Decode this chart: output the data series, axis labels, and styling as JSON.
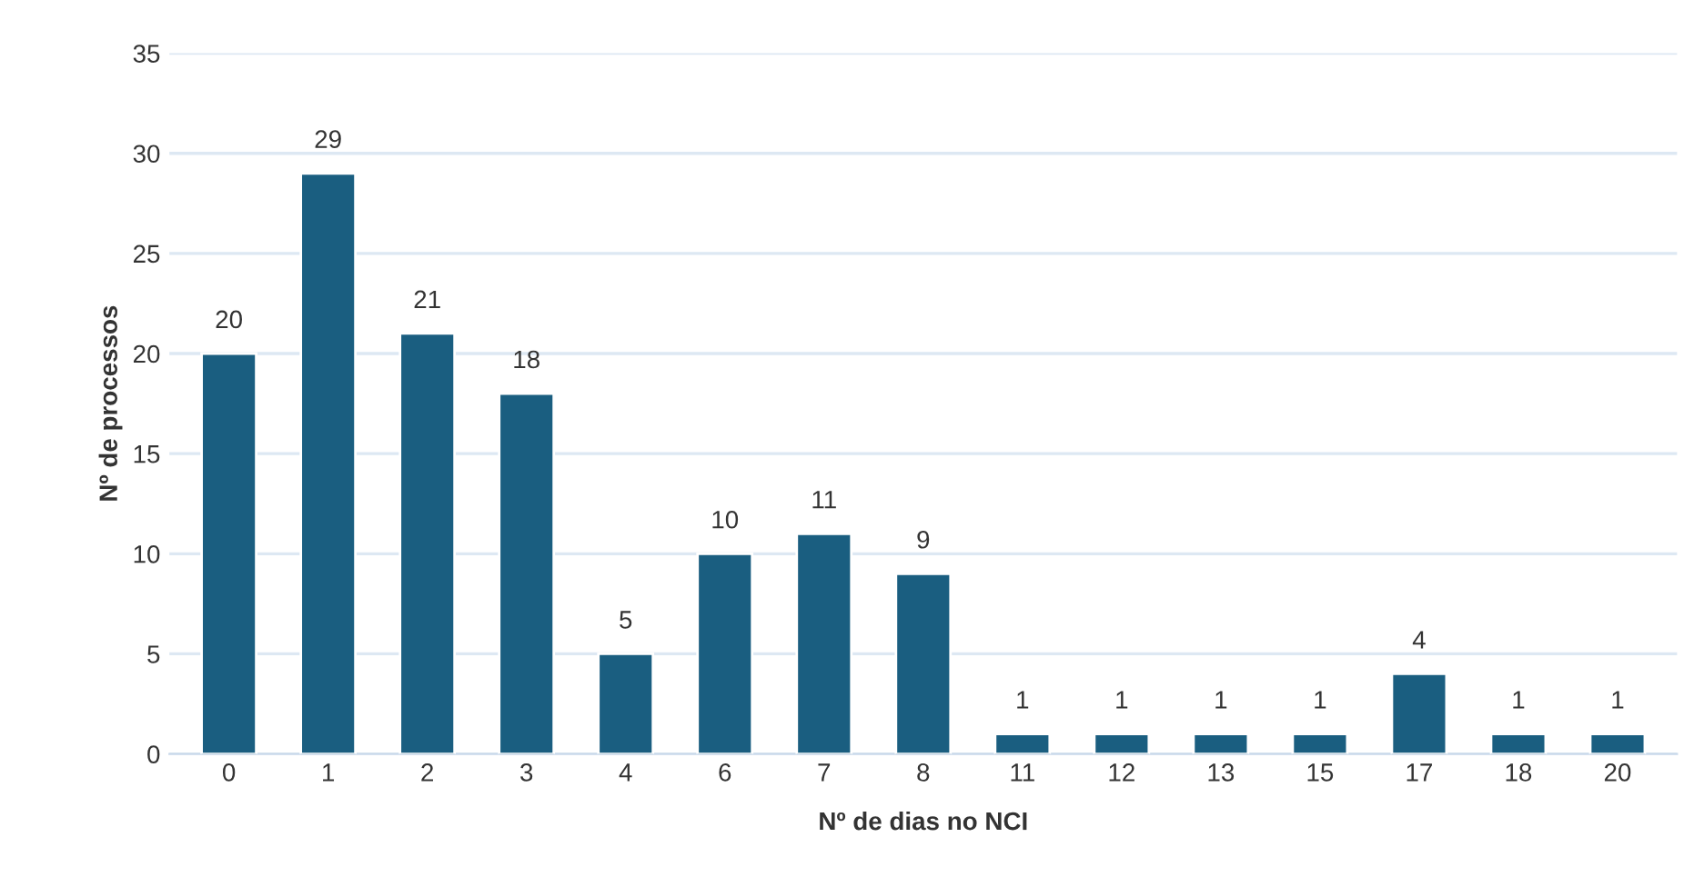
{
  "chart_data": {
    "type": "bar",
    "xlabel": "Nº de dias no NCI",
    "ylabel": "Nº de processos",
    "categories": [
      "0",
      "1",
      "2",
      "3",
      "4",
      "6",
      "7",
      "8",
      "11",
      "12",
      "13",
      "15",
      "17",
      "18",
      "20"
    ],
    "values": [
      20,
      29,
      21,
      18,
      5,
      10,
      11,
      9,
      1,
      1,
      1,
      1,
      4,
      1,
      1
    ],
    "color": "#1a5e80",
    "ylim": [
      0,
      35
    ],
    "yticks": [
      0,
      5,
      10,
      15,
      20,
      25,
      30,
      35
    ],
    "grid": "y",
    "data_labels": true
  }
}
